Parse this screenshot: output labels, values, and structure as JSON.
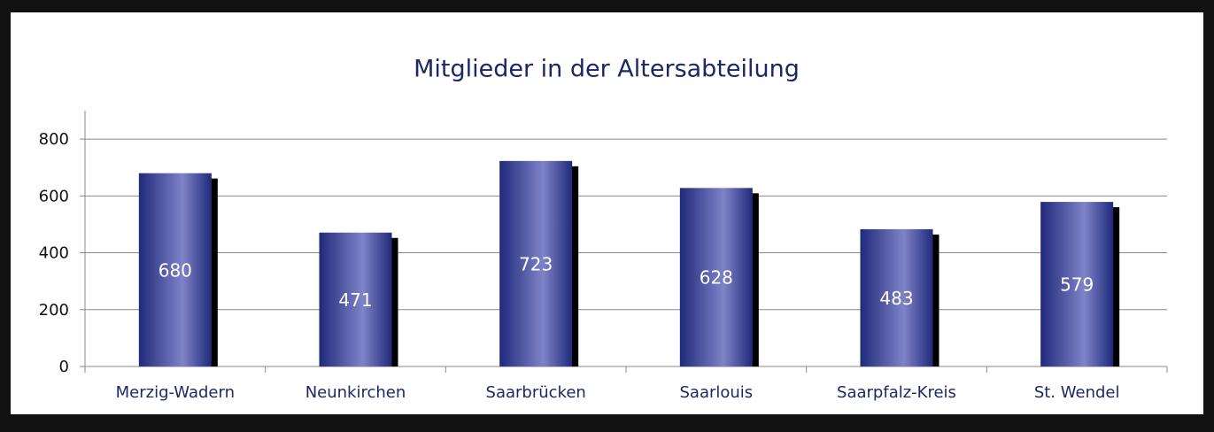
{
  "chart_data": {
    "type": "bar",
    "title": "Mitglieder in der Altersabteilung",
    "categories": [
      "Merzig-Wadern",
      "Neunkirchen",
      "Saarbrücken",
      "Saarlouis",
      "Saarpfalz-Kreis",
      "St. Wendel"
    ],
    "values": [
      680,
      471,
      723,
      628,
      483,
      579
    ],
    "color": "#1f2a7a",
    "ylim": [
      0,
      900
    ],
    "yticks": [
      0,
      200,
      400,
      600,
      800
    ],
    "grid": true
  }
}
